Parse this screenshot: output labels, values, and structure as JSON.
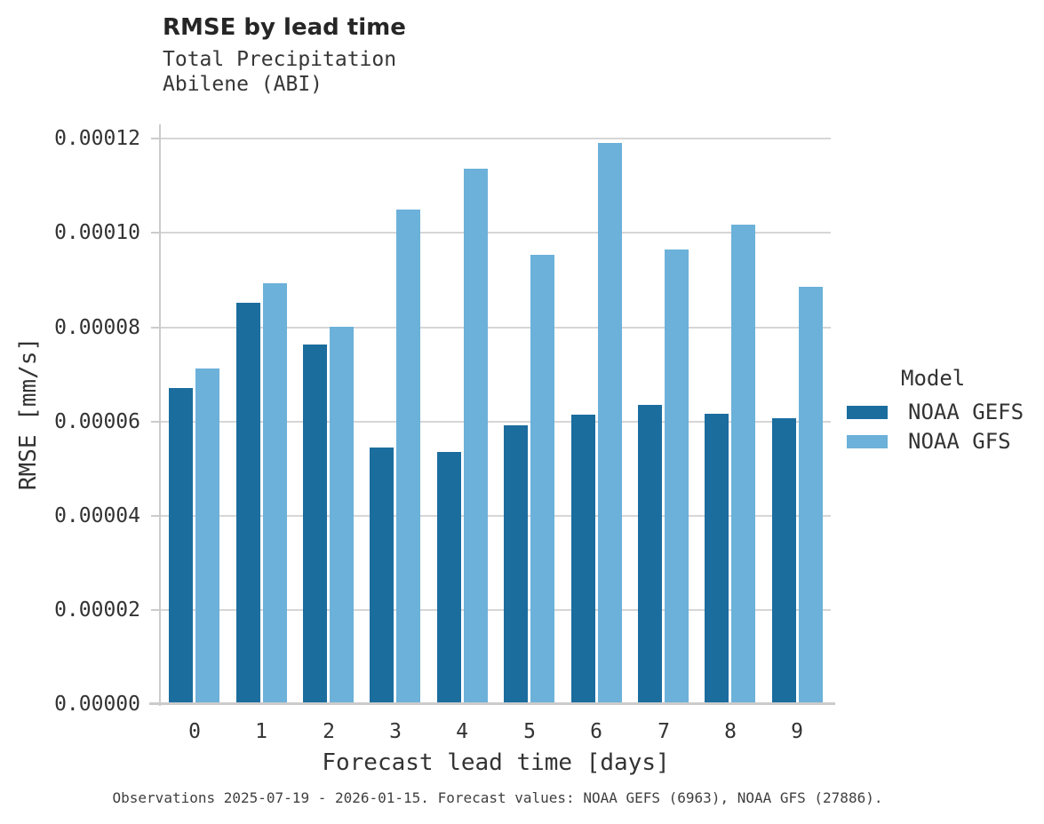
{
  "chart_data": {
    "type": "bar",
    "title": "RMSE by lead time",
    "subtitle_line1": "Total Precipitation",
    "subtitle_line2": "Abilene (ABI)",
    "xlabel": "Forecast lead time [days]",
    "ylabel": "RMSE [mm/s]",
    "categories": [
      "0",
      "1",
      "2",
      "3",
      "4",
      "5",
      "6",
      "7",
      "8",
      "9"
    ],
    "series": [
      {
        "name": "NOAA GEFS",
        "color": "#1b6d9e",
        "values": [
          6.68e-05,
          8.48e-05,
          7.6e-05,
          5.41e-05,
          5.31e-05,
          5.88e-05,
          6.1e-05,
          6.32e-05,
          6.12e-05,
          6.04e-05
        ]
      },
      {
        "name": "NOAA GFS",
        "color": "#6cb1d9",
        "values": [
          7.08e-05,
          8.9e-05,
          7.98e-05,
          0.0001046,
          0.0001132,
          9.49e-05,
          0.0001187,
          9.62e-05,
          0.0001014,
          8.82e-05
        ]
      }
    ],
    "ylim": [
      0,
      0.000123
    ],
    "yticks": [
      {
        "value": 0.0,
        "label": "0.00000"
      },
      {
        "value": 2e-05,
        "label": "0.00002"
      },
      {
        "value": 4e-05,
        "label": "0.00004"
      },
      {
        "value": 6e-05,
        "label": "0.00006"
      },
      {
        "value": 8e-05,
        "label": "0.00008"
      },
      {
        "value": 0.0001,
        "label": "0.00010"
      },
      {
        "value": 0.00012,
        "label": "0.00012"
      }
    ],
    "grid": true,
    "legend": {
      "title": "Model",
      "position": "right"
    },
    "footnote": "Observations 2025-07-19 - 2026-01-15. Forecast values: NOAA GEFS (6963), NOAA GFS (27886)."
  }
}
